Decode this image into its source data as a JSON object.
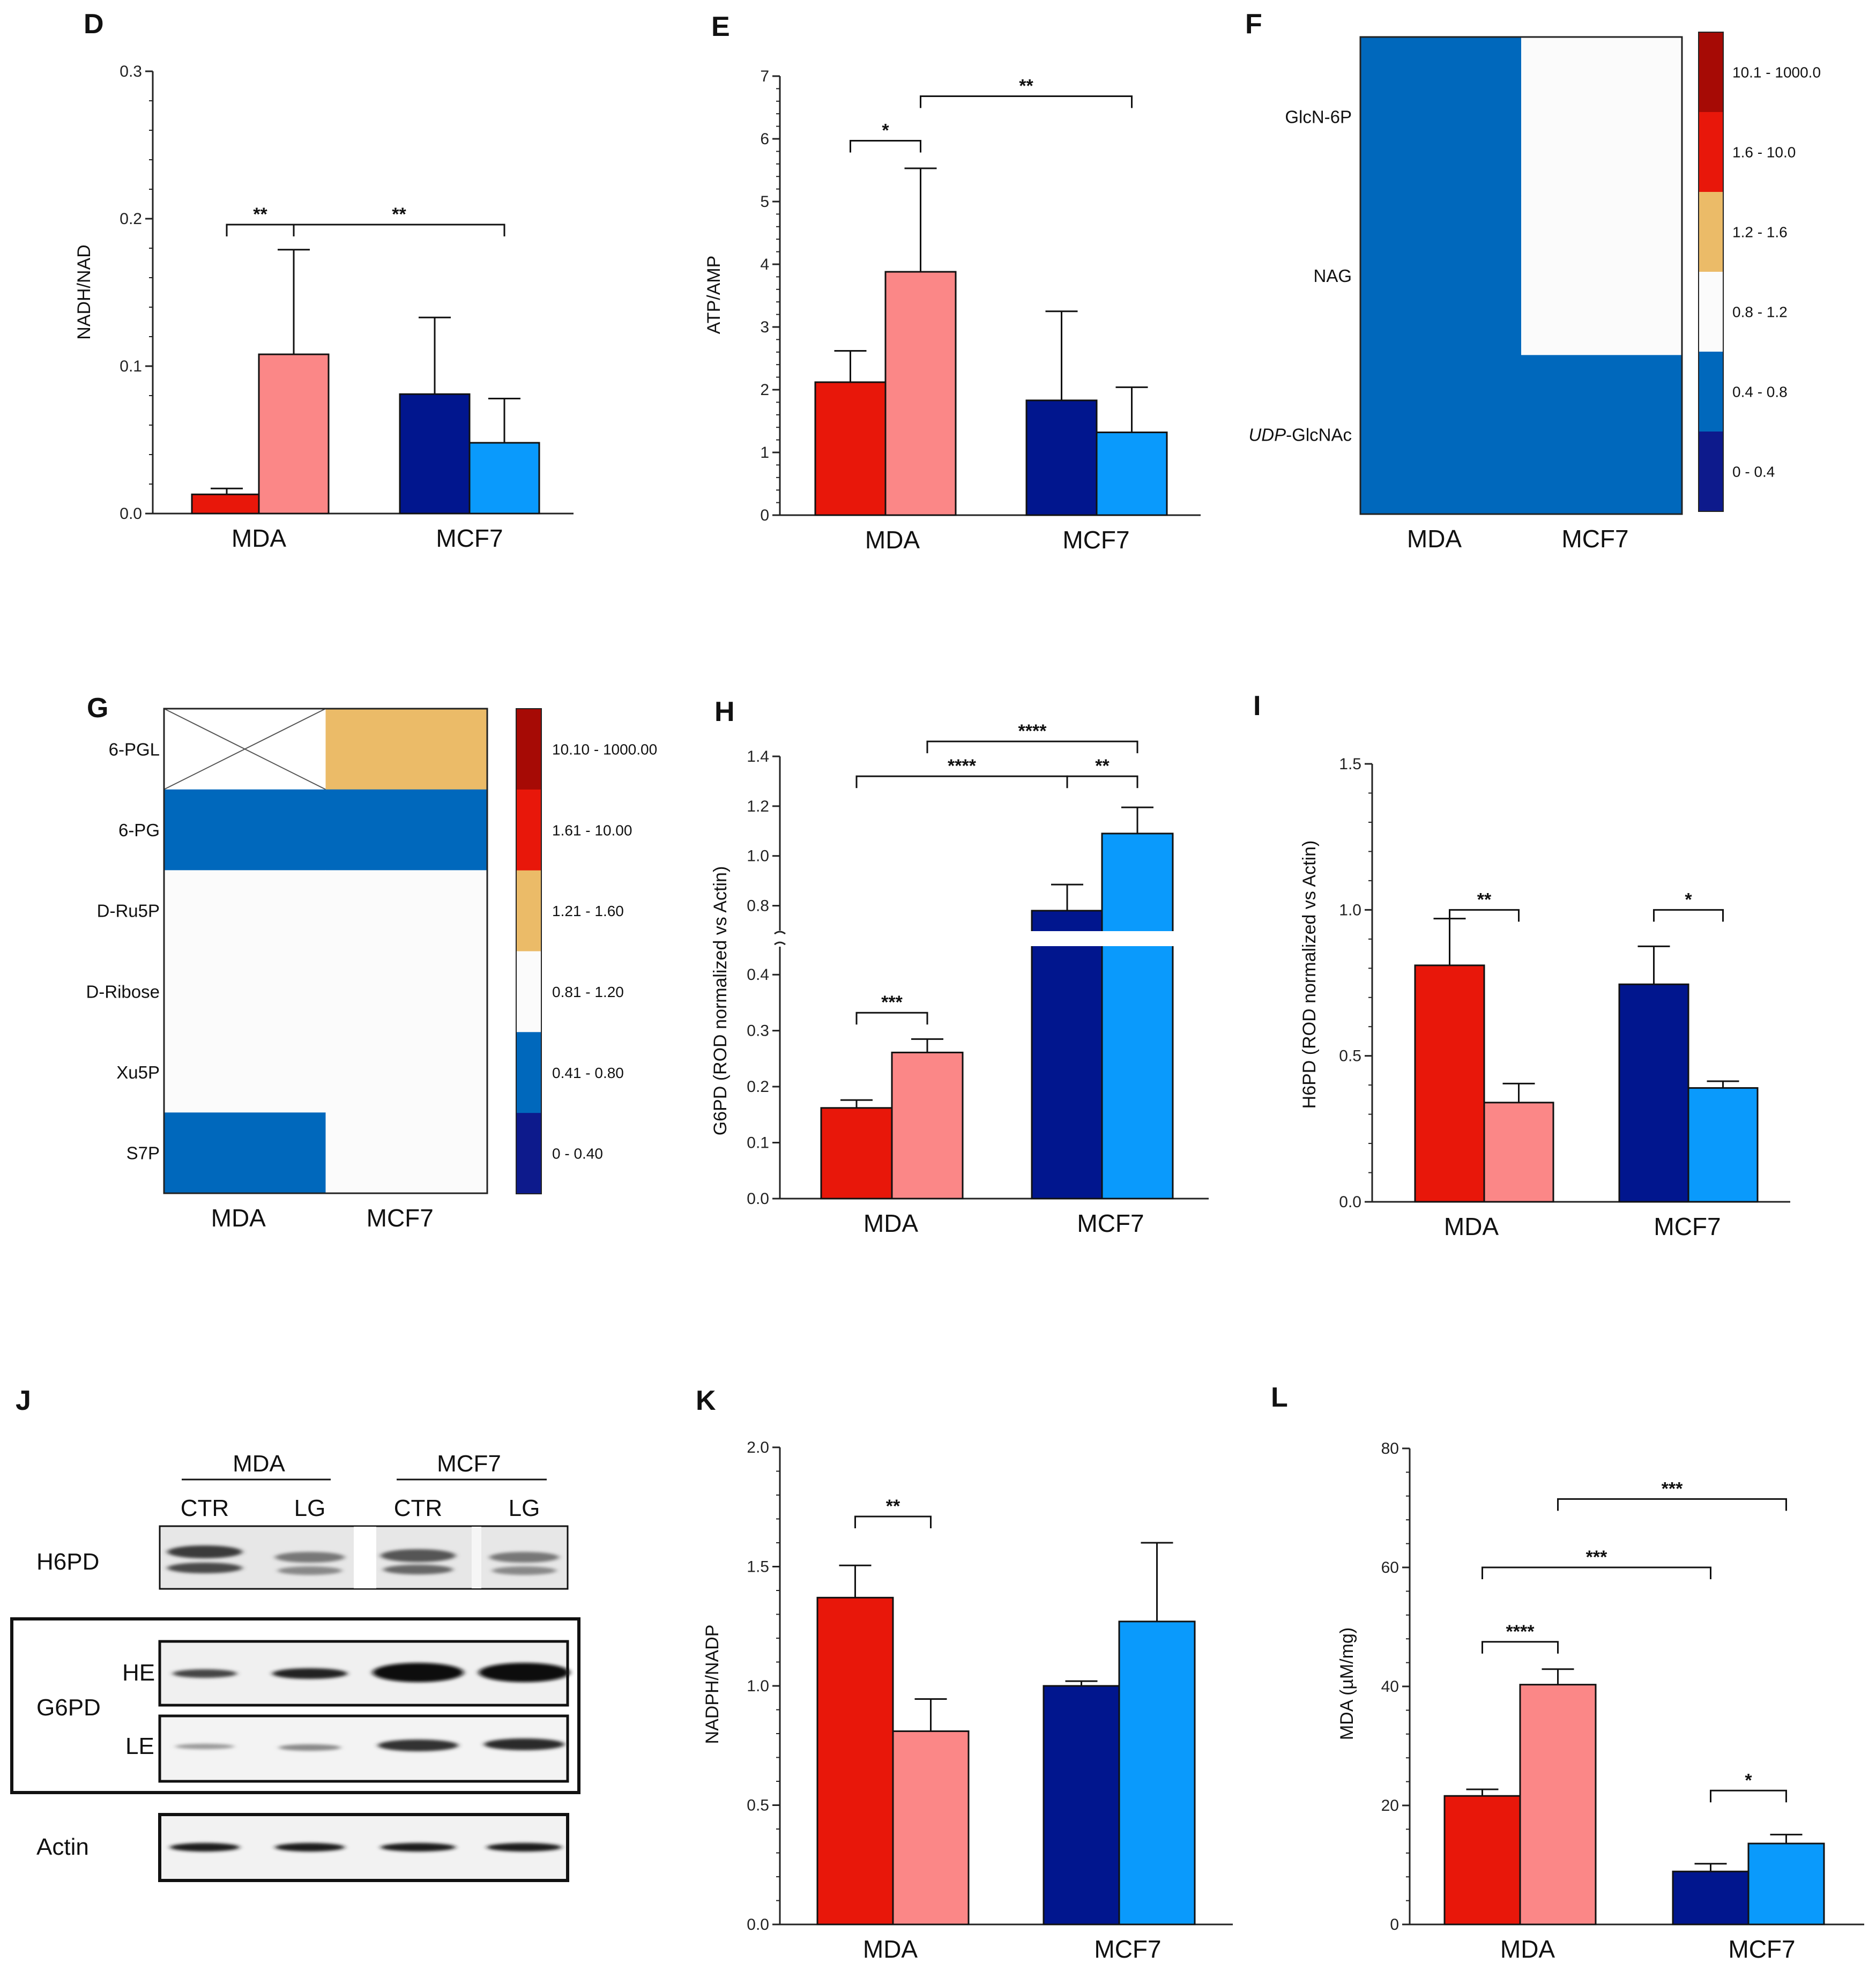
{
  "colors": {
    "mda_ctr": "#e8170a",
    "mda_lg": "#fb8787",
    "mcf_ctr": "#01168e",
    "mcf_lg": "#0a9afc",
    "heat_blue": "#0068bc",
    "heat_white": "#fbfbfb",
    "heat_tan": "#ebbb68"
  },
  "heat_legend_colors": [
    "#0d1a8c",
    "#0068bc",
    "#fbfbfb",
    "#ebbb68",
    "#e8170a",
    "#a60a05"
  ],
  "panels": {
    "D": "D",
    "E": "E",
    "F": "F",
    "G": "G",
    "H": "H",
    "I": "I",
    "J": "J",
    "K": "K",
    "L": "L"
  },
  "chart_data": [
    {
      "id": "D",
      "type": "bar",
      "ylabel": "NADH/NAD",
      "categories": [
        "MDA",
        "MCF7"
      ],
      "ylim": [
        0,
        0.3
      ],
      "ticks": [
        {
          "v": 0.0,
          "t": "0.0"
        },
        {
          "v": 0.1,
          "t": "0.1"
        },
        {
          "v": 0.2,
          "t": "0.2"
        },
        {
          "v": 0.3,
          "t": "0.3"
        }
      ],
      "bars": [
        {
          "group": "MDA",
          "value": 0.013,
          "err": 0.004
        },
        {
          "group": "MDA",
          "value": 0.108,
          "err": 0.071
        },
        {
          "group": "MCF7",
          "value": 0.081,
          "err": 0.052
        },
        {
          "group": "MCF7",
          "value": 0.048,
          "err": 0.03
        }
      ],
      "sig": [
        {
          "label": "**",
          "from": 0,
          "to": 1,
          "y": 0.196
        },
        {
          "label": "**",
          "from": 1,
          "to": 3,
          "y": 0.196
        }
      ]
    },
    {
      "id": "E",
      "type": "bar",
      "ylabel": "ATP/AMP",
      "categories": [
        "MDA",
        "MCF7"
      ],
      "ylim": [
        0,
        7
      ],
      "ticks": [
        {
          "v": 0,
          "t": "0"
        },
        {
          "v": 1,
          "t": "1"
        },
        {
          "v": 2,
          "t": "2"
        },
        {
          "v": 3,
          "t": "3"
        },
        {
          "v": 4,
          "t": "4"
        },
        {
          "v": 5,
          "t": "5"
        },
        {
          "v": 6,
          "t": "6"
        },
        {
          "v": 7,
          "t": "7"
        }
      ],
      "bars": [
        {
          "group": "MDA",
          "value": 2.12,
          "err": 0.5
        },
        {
          "group": "MDA",
          "value": 3.88,
          "err": 1.65
        },
        {
          "group": "MCF7",
          "value": 1.83,
          "err": 1.42
        },
        {
          "group": "MCF7",
          "value": 1.32,
          "err": 0.72
        }
      ],
      "sig": [
        {
          "label": "*",
          "from": 0,
          "to": 1,
          "y": 5.97
        },
        {
          "label": "**",
          "from": 1,
          "to": 3,
          "y": 6.68
        }
      ]
    },
    {
      "id": "F",
      "type": "heatmap",
      "rows": [
        "GlcN-6P",
        "NAG",
        "UDP-GlcNAc"
      ],
      "columns": [
        "MDA",
        "MCF7"
      ],
      "cells": [
        [
          "0.4 - 0.8",
          "0.8 - 1.2"
        ],
        [
          "0.4 - 0.8",
          "0.8 - 1.2"
        ],
        [
          "0.4 - 0.8",
          "0.4 - 0.8"
        ]
      ],
      "legend": [
        "10.1 - 1000.0",
        "1.6 - 10.0",
        "1.2 - 1.6",
        "0.8 - 1.2",
        "0.4 - 0.8",
        "0 - 0.4"
      ]
    },
    {
      "id": "G",
      "type": "heatmap",
      "rows": [
        "6-PGL",
        "6-PG",
        "D-Ru5P",
        "D-Ribose",
        "Xu5P",
        "S7P"
      ],
      "columns": [
        "MDA",
        "MCF7"
      ],
      "cells": [
        [
          "n.d.",
          "1.21 - 1.60"
        ],
        [
          "0.41 - 0.80",
          "0.41 - 0.80"
        ],
        [
          "0.81 - 1.20",
          "0.81 - 1.20"
        ],
        [
          "0.81 - 1.20",
          "0.81 - 1.20"
        ],
        [
          "0.81 - 1.20",
          "0.81 - 1.20"
        ],
        [
          "0.41 - 0.80",
          "0.81 - 1.20"
        ]
      ],
      "legend": [
        "10.10 - 1000.00",
        "1.61 - 10.00",
        "1.21 - 1.60",
        "0.81 - 1.20",
        "0.41 - 0.80",
        "0 - 0.40"
      ]
    },
    {
      "id": "H",
      "type": "bar",
      "ylabel": "G6PD (ROD normalized vs Actin)",
      "categories": [
        "MDA",
        "MCF7"
      ],
      "axis_break": {
        "lower": [
          0,
          0.45
        ],
        "upper": [
          0.7,
          1.4
        ]
      },
      "ticks": [
        {
          "v": 0.0,
          "t": "0.0"
        },
        {
          "v": 0.1,
          "t": "0.1"
        },
        {
          "v": 0.2,
          "t": "0.2"
        },
        {
          "v": 0.3,
          "t": "0.3"
        },
        {
          "v": 0.4,
          "t": "0.4"
        },
        {
          "v": 0.8,
          "t": "0.8"
        },
        {
          "v": 1.0,
          "t": "1.0"
        },
        {
          "v": 1.2,
          "t": "1.2"
        },
        {
          "v": 1.4,
          "t": "1.4"
        }
      ],
      "bars": [
        {
          "group": "MDA",
          "value": 0.162,
          "err": 0.014
        },
        {
          "group": "MDA",
          "value": 0.261,
          "err": 0.024
        },
        {
          "group": "MCF7",
          "value": 0.78,
          "err": 0.105
        },
        {
          "group": "MCF7",
          "value": 1.09,
          "err": 0.105
        }
      ],
      "sig": [
        {
          "label": "***",
          "from": 0,
          "to": 1,
          "y": 0.332
        },
        {
          "label": "****",
          "from": 0,
          "to": 2,
          "y": 1.32
        },
        {
          "label": "**",
          "from": 2,
          "to": 3,
          "y": 1.32
        },
        {
          "label": "****",
          "from": 1,
          "to": 3,
          "y": 1.46
        }
      ]
    },
    {
      "id": "I",
      "type": "bar",
      "ylabel": "H6PD (ROD normalized vs Actin)",
      "categories": [
        "MDA",
        "MCF7"
      ],
      "ylim": [
        0,
        1.5
      ],
      "ticks": [
        {
          "v": 0.0,
          "t": "0.0"
        },
        {
          "v": 0.5,
          "t": "0.5"
        },
        {
          "v": 1.0,
          "t": "1.0"
        },
        {
          "v": 1.5,
          "t": "1.5"
        }
      ],
      "bars": [
        {
          "group": "MDA",
          "value": 0.81,
          "err": 0.16
        },
        {
          "group": "MDA",
          "value": 0.34,
          "err": 0.065
        },
        {
          "group": "MCF7",
          "value": 0.745,
          "err": 0.13
        },
        {
          "group": "MCF7",
          "value": 0.39,
          "err": 0.023
        }
      ],
      "sig": [
        {
          "label": "**",
          "from": 0,
          "to": 1,
          "y": 1.0
        },
        {
          "label": "*",
          "from": 2,
          "to": 3,
          "y": 1.0
        }
      ]
    },
    {
      "id": "K",
      "type": "bar",
      "ylabel": "NADPH/NADP",
      "categories": [
        "MDA",
        "MCF7"
      ],
      "ylim": [
        0,
        2.0
      ],
      "ticks": [
        {
          "v": 0.0,
          "t": "0.0"
        },
        {
          "v": 0.5,
          "t": "0.5"
        },
        {
          "v": 1.0,
          "t": "1.0"
        },
        {
          "v": 1.5,
          "t": "1.5"
        },
        {
          "v": 2.0,
          "t": "2.0"
        }
      ],
      "bars": [
        {
          "group": "MDA",
          "value": 1.37,
          "err": 0.135
        },
        {
          "group": "MDA",
          "value": 0.81,
          "err": 0.135
        },
        {
          "group": "MCF7",
          "value": 1.0,
          "err": 0.02
        },
        {
          "group": "MCF7",
          "value": 1.27,
          "err": 0.33
        }
      ],
      "sig": [
        {
          "label": "**",
          "from": 0,
          "to": 1,
          "y": 1.71
        }
      ]
    },
    {
      "id": "L",
      "type": "bar",
      "ylabel": "MDA (µM/mg)",
      "categories": [
        "MDA",
        "MCF7"
      ],
      "ylim": [
        0,
        80
      ],
      "ticks": [
        {
          "v": 0,
          "t": "0"
        },
        {
          "v": 20,
          "t": "20"
        },
        {
          "v": 40,
          "t": "40"
        },
        {
          "v": 60,
          "t": "60"
        },
        {
          "v": 80,
          "t": "80"
        }
      ],
      "bars": [
        {
          "group": "MDA",
          "value": 21.6,
          "err": 1.1
        },
        {
          "group": "MDA",
          "value": 40.3,
          "err": 2.6
        },
        {
          "group": "MCF7",
          "value": 8.9,
          "err": 1.3
        },
        {
          "group": "MCF7",
          "value": 13.6,
          "err": 1.5
        }
      ],
      "sig": [
        {
          "label": "****",
          "from": 0,
          "to": 1,
          "y": 47.5
        },
        {
          "label": "*",
          "from": 2,
          "to": 3,
          "y": 22.5
        },
        {
          "label": "***",
          "from": 0,
          "to": 2,
          "y": 60.0
        },
        {
          "label": "***",
          "from": 1,
          "to": 3,
          "y": 71.5
        }
      ]
    }
  ],
  "blot": {
    "groups": [
      "MDA",
      "MCF7"
    ],
    "lanes": [
      "CTR",
      "LG",
      "CTR",
      "LG"
    ],
    "h6pd": "H6PD",
    "g6pd": "G6PD",
    "he": "HE",
    "le": "LE",
    "actin": "Actin"
  }
}
